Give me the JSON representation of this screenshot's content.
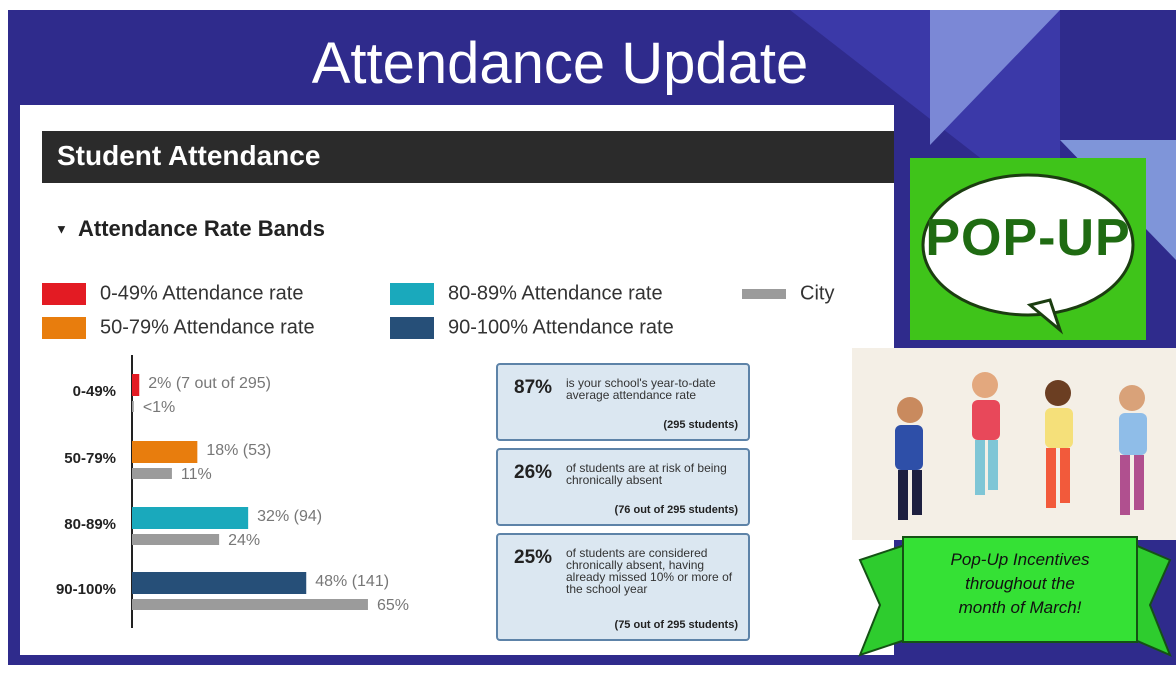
{
  "title": "Attendance Update",
  "section_title": "Student Attendance",
  "popup": "POP-UP",
  "banner": [
    "Pop-Up Incentives",
    "throughout the",
    "month of March!"
  ],
  "info_boxes": [
    {
      "figure": "87%",
      "text": "is your school's year-to-date average attendance rate",
      "note": "(295 students)"
    },
    {
      "figure": "26%",
      "text": "of students are at risk of being chronically absent",
      "note": "(76 out of 295 students)"
    },
    {
      "figure": "25%",
      "text": "of students are considered chronically absent, having already missed 10% or more of the school year",
      "note": "(75 out of 295 students)"
    }
  ],
  "chart_data": {
    "type": "bar",
    "orientation": "horizontal",
    "title": "Attendance Rate Bands",
    "categories": [
      "0-49%",
      "50-79%",
      "80-89%",
      "90-100%"
    ],
    "xlim": [
      0,
      100
    ],
    "series": [
      {
        "colors": [
          "#e31b23",
          "#e87d0d",
          "#1aa9bc",
          "#264f78"
        ],
        "legend": [
          "0-49% Attendance rate",
          "50-79% Attendance rate",
          "80-89% Attendance rate",
          "90-100% Attendance rate"
        ],
        "values": [
          2,
          18,
          32,
          48
        ],
        "value_labels": [
          "2% (7 out of 295)",
          "18% (53)",
          "32% (94)",
          "48% (141)"
        ]
      },
      {
        "name": "City",
        "color": "#9b9b9b",
        "values": [
          0.5,
          11,
          24,
          65
        ],
        "value_labels": [
          "<1%",
          "11%",
          "24%",
          "65%"
        ]
      }
    ]
  }
}
